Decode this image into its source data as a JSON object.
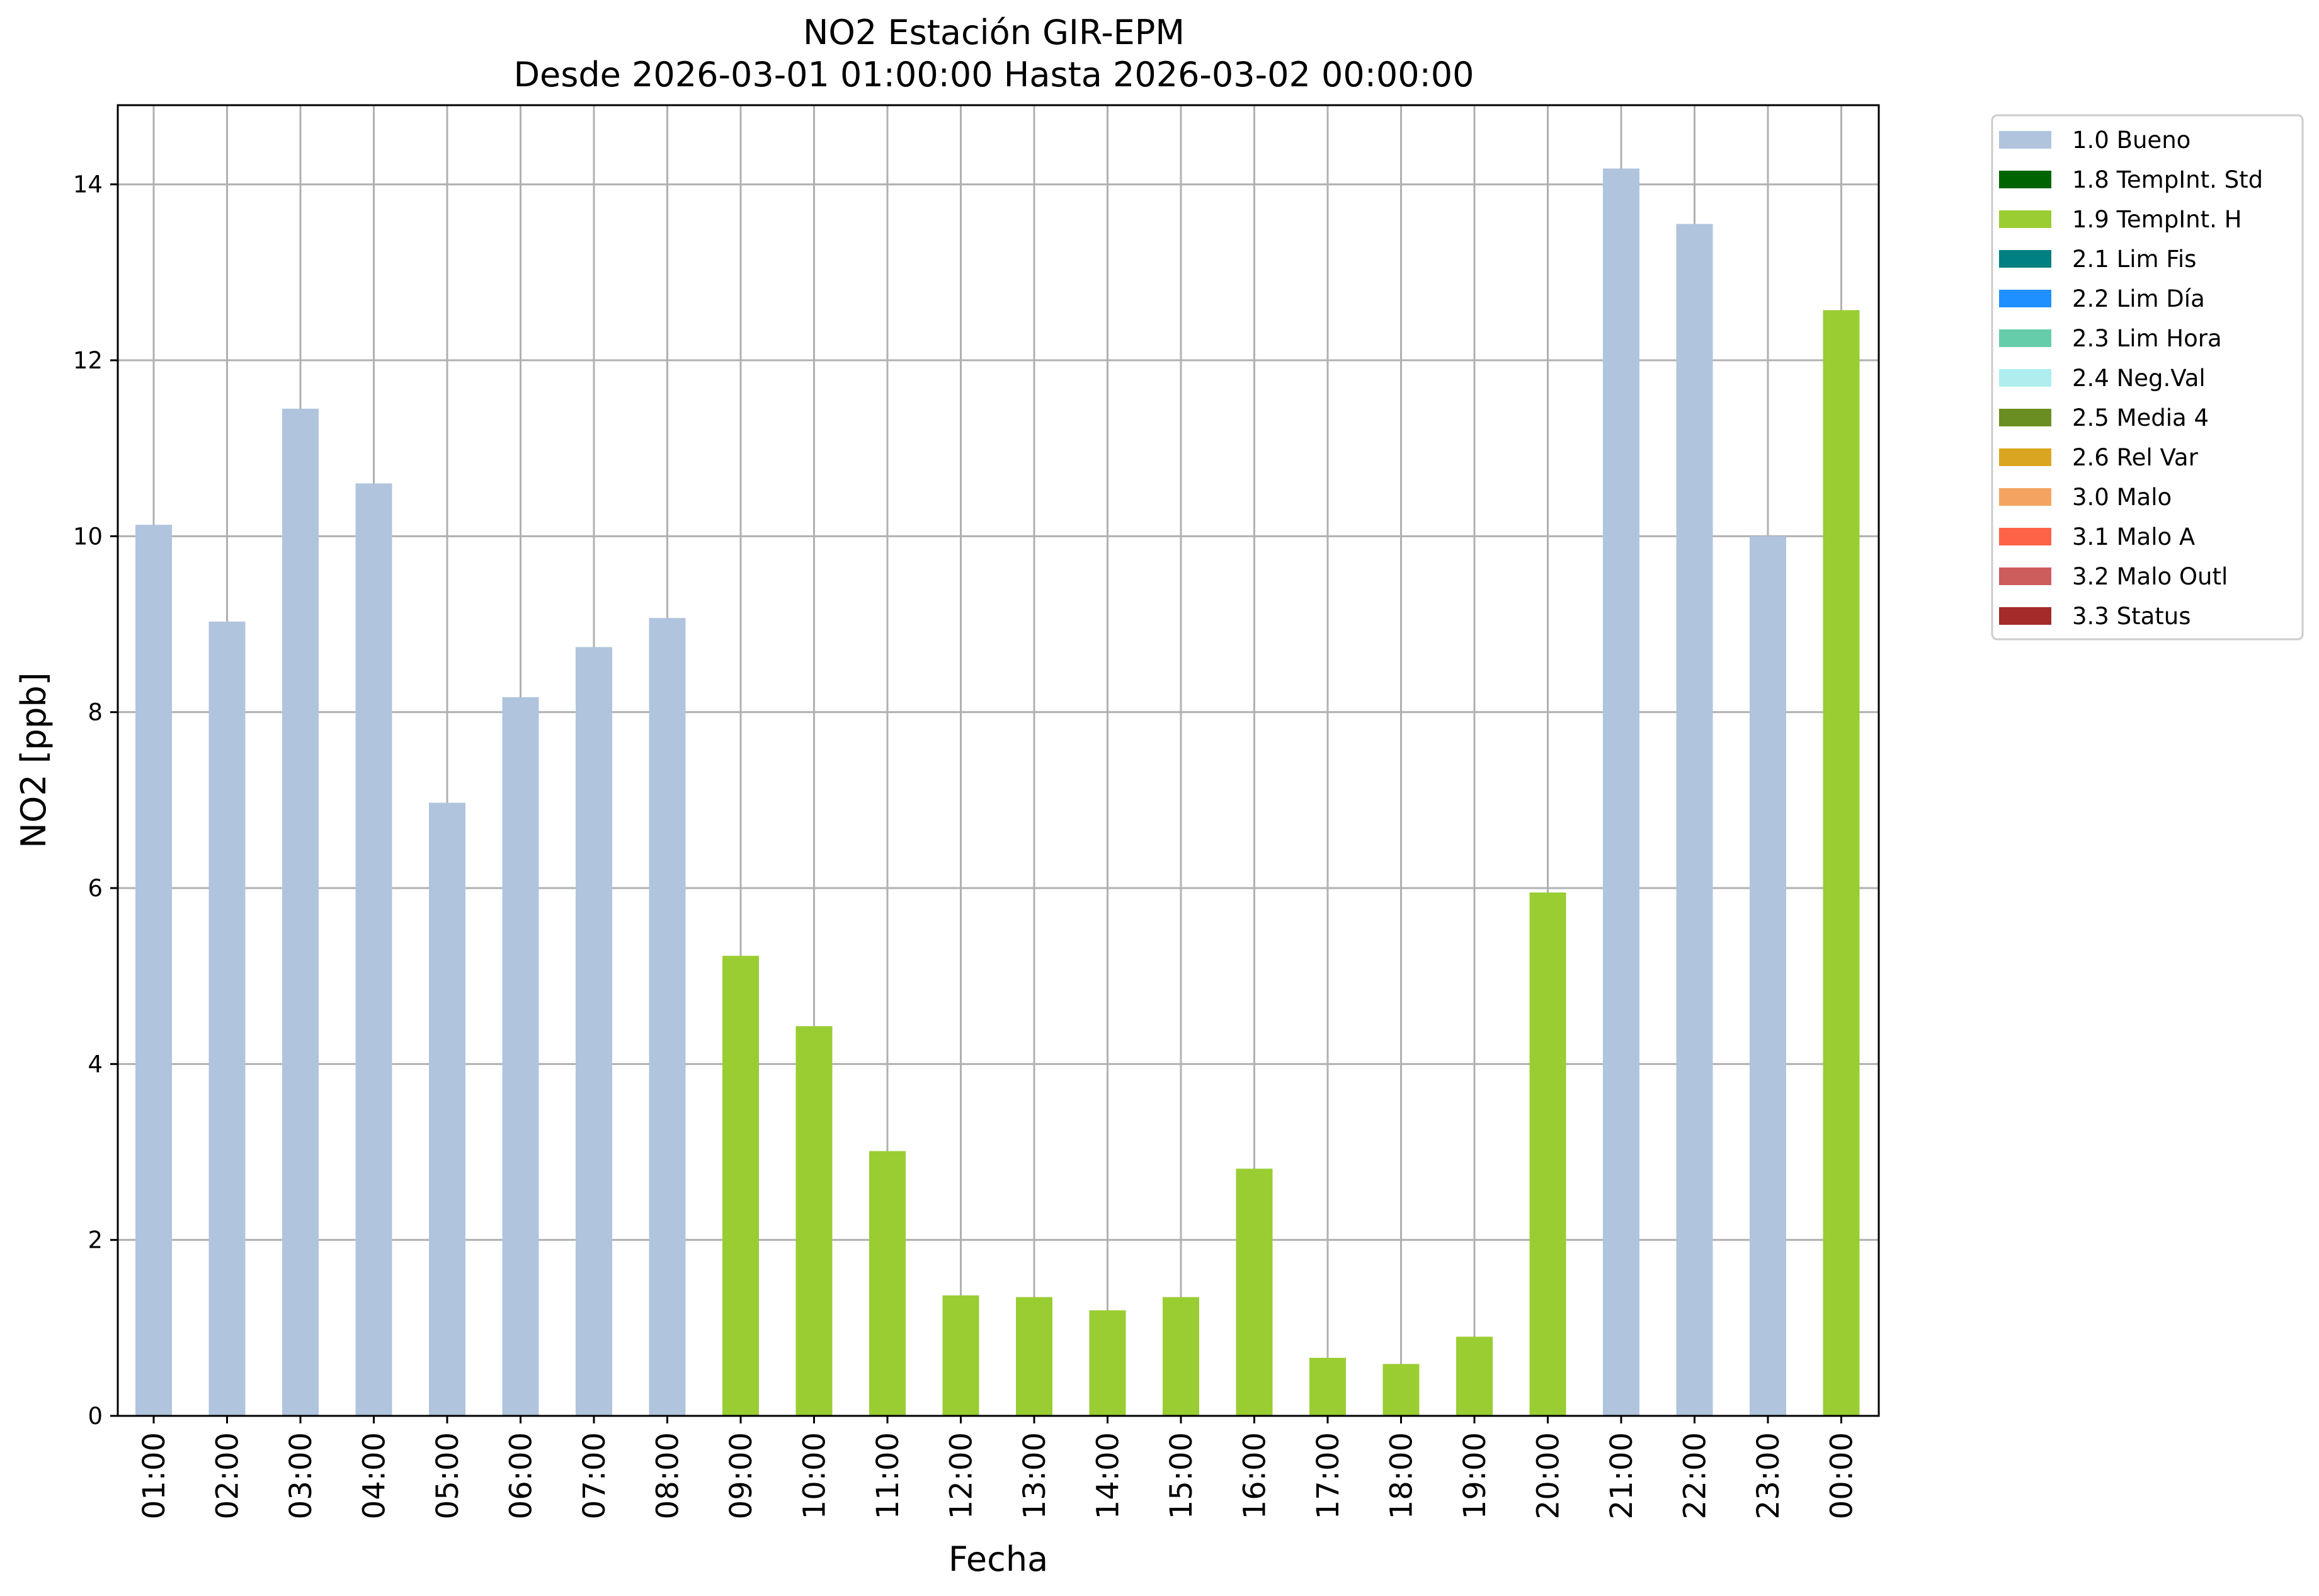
{
  "chart_data": {
    "type": "bar",
    "title": "NO2 Estación GIR-EPM",
    "subtitle": "Desde 2026-03-01 01:00:00 Hasta 2026-03-02 00:00:00",
    "xlabel": "Fecha",
    "ylabel": "NO2 [ppb]",
    "ylim": [
      0,
      14.9
    ],
    "yticks": [
      0,
      2,
      4,
      6,
      8,
      10,
      12,
      14
    ],
    "grid": true,
    "legend_position": "outside-right",
    "categories": [
      "01:00",
      "02:00",
      "03:00",
      "04:00",
      "05:00",
      "06:00",
      "07:00",
      "08:00",
      "09:00",
      "10:00",
      "11:00",
      "12:00",
      "13:00",
      "14:00",
      "15:00",
      "16:00",
      "17:00",
      "18:00",
      "19:00",
      "20:00",
      "21:00",
      "22:00",
      "23:00",
      "00:00"
    ],
    "values": [
      10.13,
      9.03,
      11.45,
      10.6,
      6.97,
      8.17,
      8.74,
      9.07,
      5.23,
      4.43,
      3.01,
      1.37,
      1.35,
      1.2,
      1.35,
      2.81,
      0.66,
      0.59,
      0.9,
      5.95,
      14.18,
      13.55,
      10.0,
      12.57
    ],
    "flags": [
      "1.0 Bueno",
      "1.0 Bueno",
      "1.0 Bueno",
      "1.0 Bueno",
      "1.0 Bueno",
      "1.0 Bueno",
      "1.0 Bueno",
      "1.0 Bueno",
      "1.9 TempInt. H",
      "1.9 TempInt. H",
      "1.9 TempInt. H",
      "1.9 TempInt. H",
      "1.9 TempInt. H",
      "1.9 TempInt. H",
      "1.9 TempInt. H",
      "1.9 TempInt. H",
      "1.9 TempInt. H",
      "1.9 TempInt. H",
      "1.9 TempInt. H",
      "1.9 TempInt. H",
      "1.0 Bueno",
      "1.0 Bueno",
      "1.0 Bueno",
      "1.9 TempInt. H"
    ],
    "legend": [
      {
        "label": "1.0 Bueno",
        "color": "#b0c4de"
      },
      {
        "label": "1.8 TempInt. Std",
        "color": "#006400"
      },
      {
        "label": "1.9 TempInt. H",
        "color": "#9acd32"
      },
      {
        "label": "2.1 Lim Fis",
        "color": "#008080"
      },
      {
        "label": "2.2 Lim Día",
        "color": "#1e90ff"
      },
      {
        "label": "2.3 Lim Hora",
        "color": "#66cdaa"
      },
      {
        "label": "2.4 Neg.Val",
        "color": "#afeeee"
      },
      {
        "label": "2.5 Media 4",
        "color": "#6b8e23"
      },
      {
        "label": "2.6 Rel Var",
        "color": "#daa520"
      },
      {
        "label": "3.0 Malo",
        "color": "#f4a460"
      },
      {
        "label": "3.1 Malo A",
        "color": "#ff6347"
      },
      {
        "label": "3.2 Malo Outl",
        "color": "#cd5c5c"
      },
      {
        "label": "3.3 Status",
        "color": "#a52a2a"
      }
    ]
  }
}
